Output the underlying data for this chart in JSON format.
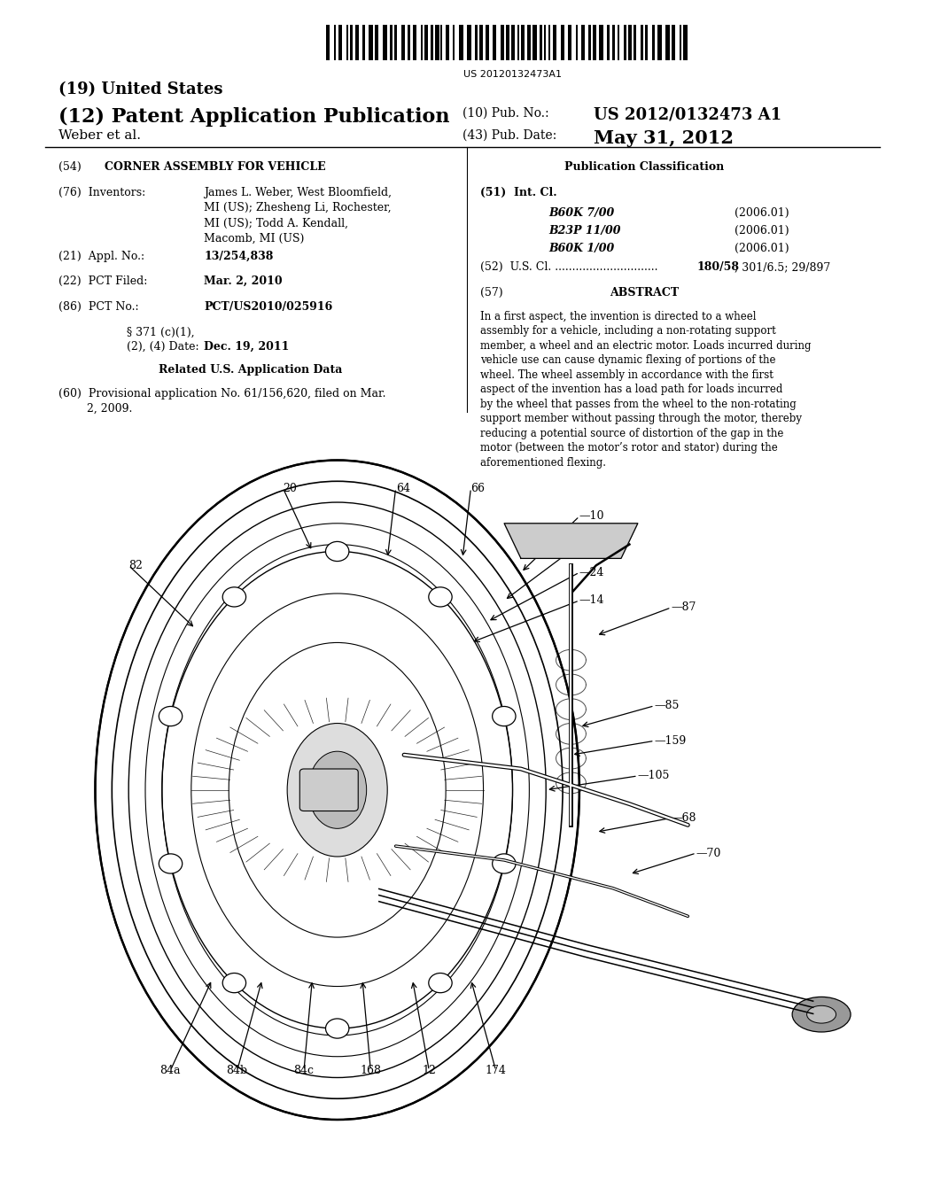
{
  "background_color": "#ffffff",
  "page_width": 10.24,
  "page_height": 13.2,
  "barcode_text": "US 20120132473A1",
  "title_19": "(19) United States",
  "title_12": "(12) Patent Application Publication",
  "author": "Weber et al.",
  "pub_no_label": "(10) Pub. No.:",
  "pub_no": "US 2012/0132473 A1",
  "pub_date_label": "(43) Pub. Date:",
  "pub_date": "May 31, 2012",
  "invention_title_label": "(54)",
  "invention_title": "CORNER ASSEMBLY FOR VEHICLE",
  "pub_class_label": "Publication Classification",
  "inventors_label": "(76)  Inventors:",
  "inventors_text": "James L. Weber, West Bloomfield,\nMI (US); Zhesheng Li, Rochester,\nMI (US); Todd A. Kendall,\nMacomb, MI (US)",
  "appl_no_label": "(21)  Appl. No.:",
  "appl_no": "13/254,838",
  "pct_filed_label": "(22)  PCT Filed:",
  "pct_filed": "Mar. 2, 2010",
  "pct_no_label": "(86)  PCT No.:",
  "pct_no": "PCT/US2010/025916",
  "section371_date": "Dec. 19, 2011",
  "related_data_label": "Related U.S. Application Data",
  "int_cl_entries": [
    {
      "code": "B60K 7/00",
      "year": "(2006.01)"
    },
    {
      "code": "B23P 11/00",
      "year": "(2006.01)"
    },
    {
      "code": "B60K 1/00",
      "year": "(2006.01)"
    }
  ],
  "us_cl_dots": "U.S. Cl. ..............................",
  "us_cl_bold": "180/58",
  "us_cl_rest": "; 301/6.5; 29/897",
  "abstract_title": "ABSTRACT",
  "abstract_text": "In a first aspect, the invention is directed to a wheel assembly for a vehicle, including a non-rotating support member, a wheel and an electric motor. Loads incurred during vehicle use can cause dynamic flexing of portions of the wheel. The wheel assembly in accordance with the first aspect of the invention has a load path for loads incurred by the wheel that passes from the wheel to the non-rotating support member without passing through the motor, thereby reducing a potential source of distortion of the gap in the motor (between the motor’s rotor and stator) during the aforementioned flexing."
}
